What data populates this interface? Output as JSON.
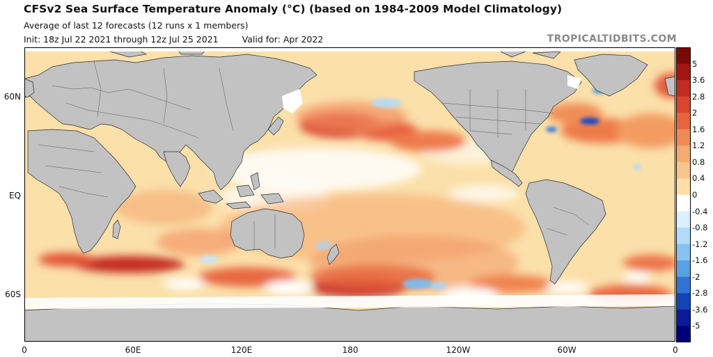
{
  "header": {
    "title": "CFSv2 Sea Surface Temperature Anomaly (°C) (based on 1984-2009 Model Climatology)",
    "subtitle": "Average of last 12 forecasts (12 runs x 1 members)",
    "init": "Init: 18z Jul 22 2021 through 12z Jul 25 2021",
    "valid": "Valid for: Apr 2022",
    "watermark": "TROPICALTIDBITS.COM"
  },
  "axes": {
    "lat_labels": [
      "60N",
      "EQ",
      "60S"
    ],
    "lon_labels": [
      "0",
      "60E",
      "120E",
      "180",
      "120W",
      "60W",
      "0"
    ]
  },
  "colorbar": {
    "labels": [
      "5",
      "3.6",
      "2.8",
      "2",
      "1.6",
      "1.2",
      "0.8",
      "0.4",
      "0",
      "-0.4",
      "-0.8",
      "-1.2",
      "-1.6",
      "-2",
      "-2.8",
      "-3.6",
      "-5"
    ],
    "colors": [
      "#7a0a0a",
      "#a31515",
      "#c42a24",
      "#d9452f",
      "#e6653f",
      "#f08a55",
      "#f5aa70",
      "#f8c58c",
      "#fbdfa6",
      "#ffffff",
      "#dcefff",
      "#b3dcfa",
      "#86c2f2",
      "#5aa0e6",
      "#2f74d6",
      "#1442b8",
      "#0a1a9a",
      "#00007a"
    ]
  },
  "colors": {
    "land": "#c0c0c0",
    "ice": "#ffffff",
    "ocean_base": "#fbe3b0"
  }
}
